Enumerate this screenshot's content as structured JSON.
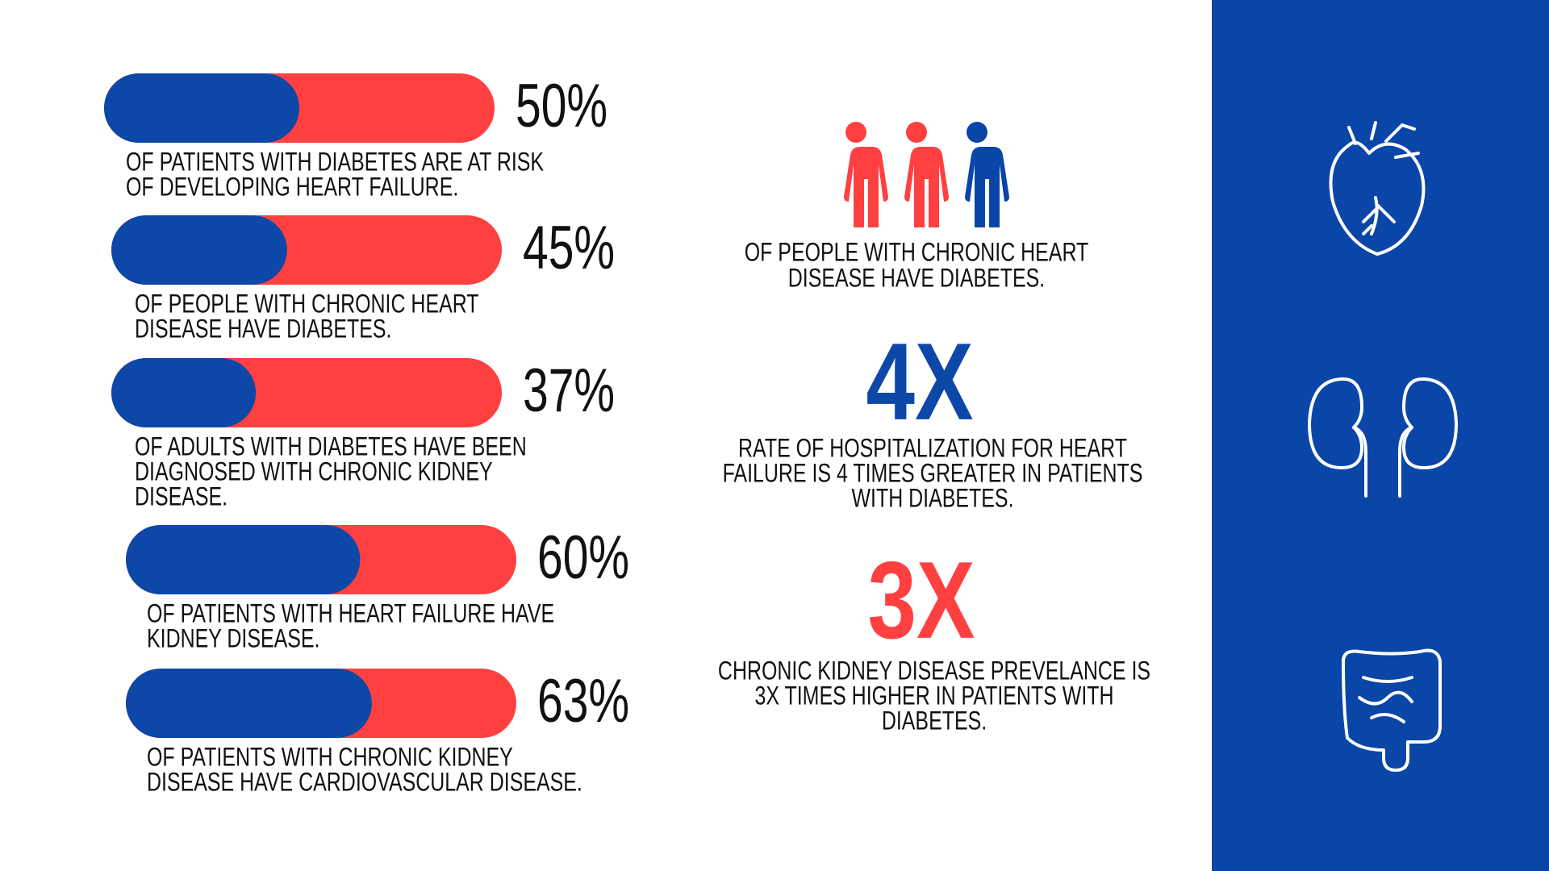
{
  "bars": {
    "values": [
      50,
      45,
      37,
      60,
      63
    ],
    "value_labels": [
      "50%",
      "45%",
      "37%",
      "60%",
      "63%"
    ],
    "captions": [
      [
        "OF PATIENTS WITH DIABETES ARE AT RISK",
        "OF DEVELOPING HEART FAILURE."
      ],
      [
        "OF PEOPLE WITH CHRONIC HEART",
        "DISEASE HAVE DIABETES."
      ],
      [
        "OF ADULTS WITH DIABETES HAVE BEEN",
        "DIAGNOSED WITH CHRONIC KIDNEY",
        "DISEASE."
      ],
      [
        "OF PATIENTS WITH HEART FAILURE HAVE",
        "KIDNEY DISEASE."
      ],
      [
        "OF PATIENTS WITH CHRONIC KIDNEY",
        "DISEASE HAVE CARDIOVASCULAR DISEASE."
      ]
    ]
  },
  "people_caption": [
    "OF PEOPLE WITH CHRONIC HEART",
    "DISEASE HAVE DIABETES."
  ],
  "stats": [
    {
      "label": "4X",
      "caption": [
        "RATE OF HOSPITALIZATION FOR HEART",
        "FAILURE IS 4 TIMES GREATER IN PATIENTS",
        "WITH DIABETES."
      ]
    },
    {
      "label": "3X",
      "caption": [
        "CHRONIC KIDNEY DISEASE PREVELANCE IS",
        "3X TIMES HIGHER IN PATIENTS WITH",
        "DIABETES."
      ]
    }
  ]
}
